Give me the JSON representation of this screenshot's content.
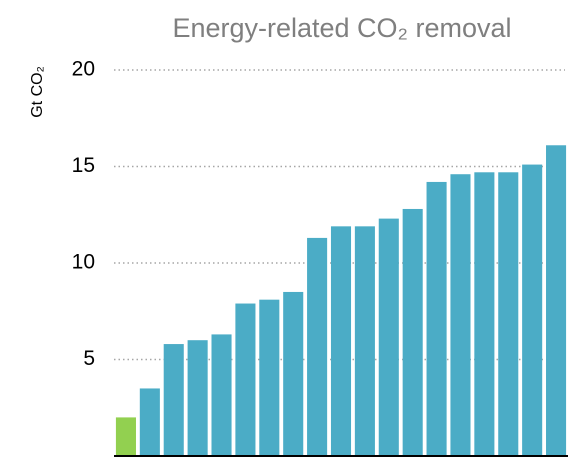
{
  "chart_data": {
    "type": "bar",
    "title": "Energy-related CO₂ removal",
    "y_label": "Gt CO₂",
    "categories": [
      null,
      null,
      null,
      null,
      null,
      null,
      null,
      null,
      null,
      null,
      null,
      null,
      null,
      null,
      null,
      null,
      null,
      null,
      null
    ],
    "values": [
      2.0,
      3.5,
      5.8,
      6.0,
      6.3,
      7.9,
      8.1,
      8.5,
      11.3,
      11.9,
      11.9,
      12.3,
      12.8,
      14.2,
      14.6,
      14.7,
      14.7,
      15.1,
      16.1
    ],
    "colors": [
      "#92d050",
      "#4bacc6",
      "#4bacc6",
      "#4bacc6",
      "#4bacc6",
      "#4bacc6",
      "#4bacc6",
      "#4bacc6",
      "#4bacc6",
      "#4bacc6",
      "#4bacc6",
      "#4bacc6",
      "#4bacc6",
      "#4bacc6",
      "#4bacc6",
      "#4bacc6",
      "#4bacc6",
      "#4bacc6",
      "#4bacc6"
    ],
    "ylim": [
      0,
      20
    ],
    "yticks": [
      5,
      10,
      15,
      20
    ],
    "grid": true
  }
}
